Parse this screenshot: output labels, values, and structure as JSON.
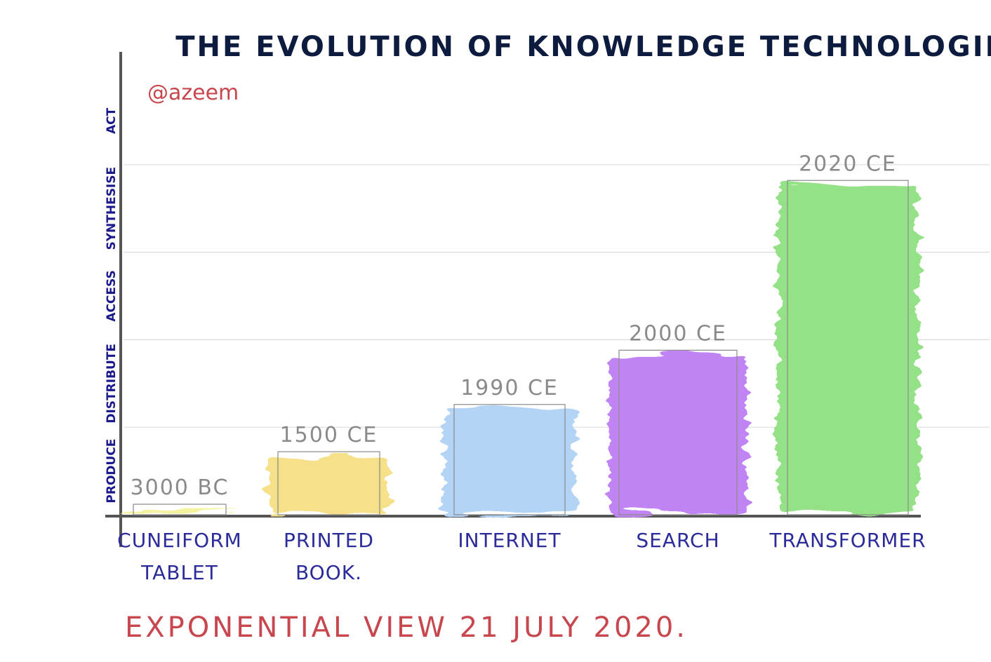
{
  "chart_data": {
    "type": "bar",
    "title": "THE EVOLUTION OF KNOWLEDGE TECHNOLOGIES",
    "author": "@azeem",
    "footer": "EXPONENTIAL VIEW 21 JULY 2020.",
    "xlabel": "",
    "ylabel": "",
    "y_levels": [
      "PRODUCE",
      "DISTRIBUTE",
      "ACCESS",
      "SYNTHESISE",
      "ACT"
    ],
    "y_level_boundaries": [
      1,
      2,
      3,
      4
    ],
    "ylim": [
      0,
      5
    ],
    "grid": true,
    "categories": [
      "CUNEIFORM TABLET",
      "PRINTED BOOK.",
      "INTERNET",
      "SEARCH",
      "TRANSFORMER"
    ],
    "category_lines": [
      [
        "CUNEIFORM",
        "TABLET"
      ],
      [
        "PRINTED",
        "BOOK."
      ],
      [
        "INTERNET"
      ],
      [
        "SEARCH"
      ],
      [
        "TRANSFORMER"
      ]
    ],
    "date_labels": [
      "3000 BC",
      "1500 CE",
      "1990 CE",
      "2000 CE",
      "2020 CE"
    ],
    "values": [
      0.12,
      0.72,
      1.26,
      1.88,
      3.82
    ],
    "colors": [
      "#f6f3a0",
      "#f6e08a",
      "#b3d4f5",
      "#c084f5",
      "#95e187"
    ],
    "title_color": "#0d1b3e",
    "axis_label_color": "#1a1a8c",
    "accent_color": "#c8474f"
  }
}
